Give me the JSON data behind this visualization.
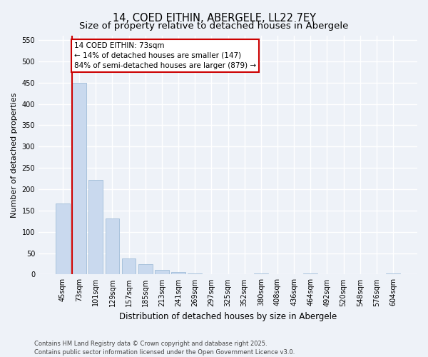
{
  "title": "14, COED EITHIN, ABERGELE, LL22 7EY",
  "subtitle": "Size of property relative to detached houses in Abergele",
  "xlabel": "Distribution of detached houses by size in Abergele",
  "ylabel": "Number of detached properties",
  "categories": [
    "45sqm",
    "73sqm",
    "101sqm",
    "129sqm",
    "157sqm",
    "185sqm",
    "213sqm",
    "241sqm",
    "269sqm",
    "297sqm",
    "325sqm",
    "352sqm",
    "380sqm",
    "408sqm",
    "436sqm",
    "464sqm",
    "492sqm",
    "520sqm",
    "548sqm",
    "576sqm",
    "604sqm"
  ],
  "values": [
    167,
    450,
    222,
    132,
    37,
    25,
    10,
    5,
    2,
    0,
    0,
    0,
    2,
    0,
    0,
    2,
    0,
    0,
    0,
    0,
    2
  ],
  "bar_color": "#c9d9ee",
  "bar_edge_color": "#a0bdd8",
  "vline_color": "#cc0000",
  "annotation_text": "14 COED EITHIN: 73sqm\n← 14% of detached houses are smaller (147)\n84% of semi-detached houses are larger (879) →",
  "annotation_box_facecolor": "#ffffff",
  "annotation_box_edgecolor": "#cc0000",
  "ylim": [
    0,
    560
  ],
  "yticks": [
    0,
    50,
    100,
    150,
    200,
    250,
    300,
    350,
    400,
    450,
    500,
    550
  ],
  "footer1": "Contains HM Land Registry data © Crown copyright and database right 2025.",
  "footer2": "Contains public sector information licensed under the Open Government Licence v3.0.",
  "bg_color": "#eef2f8",
  "grid_color": "#ffffff",
  "title_fontsize": 10.5,
  "subtitle_fontsize": 9.5,
  "tick_fontsize": 7,
  "ylabel_fontsize": 8,
  "xlabel_fontsize": 8.5,
  "annotation_fontsize": 7.5,
  "footer_fontsize": 6
}
